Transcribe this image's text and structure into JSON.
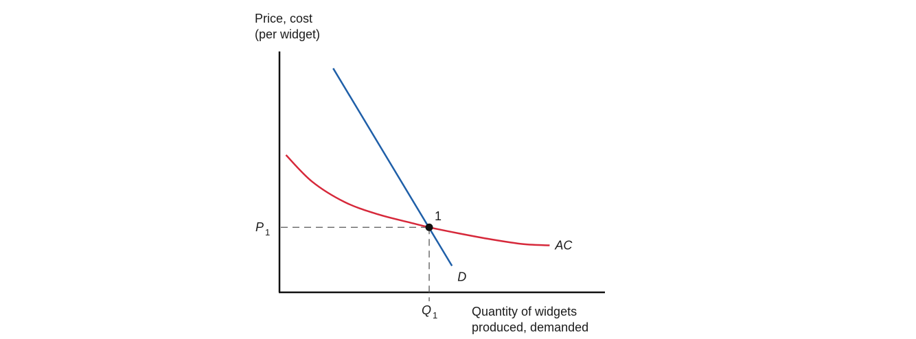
{
  "chart_data": {
    "type": "line",
    "ylabel_lines": [
      "Price, cost",
      "(per widget)"
    ],
    "xlabel_lines": [
      "Quantity of widgets",
      "produced, demanded"
    ],
    "xlim": [
      0,
      10
    ],
    "ylim": [
      0,
      10
    ],
    "series": [
      {
        "name": "D",
        "color": "#1f5fa8",
        "x": [
          1.65,
          5.3
        ],
        "y": [
          9.3,
          1.1
        ]
      },
      {
        "name": "AC",
        "color": "#d6283a",
        "x": [
          0.2,
          1.0,
          2.0,
          3.0,
          4.0,
          4.6,
          5.5,
          6.5,
          7.5,
          8.3
        ],
        "y": [
          5.7,
          4.6,
          3.75,
          3.25,
          2.9,
          2.7,
          2.45,
          2.2,
          2.0,
          1.95
        ]
      }
    ],
    "point": {
      "label": "1",
      "x": 4.6,
      "y": 2.7,
      "color": "#111111"
    },
    "tick_labels": {
      "x": {
        "main": "Q",
        "sub": "1"
      },
      "y": {
        "main": "P",
        "sub": "1"
      }
    },
    "grid": false,
    "legend": "none"
  }
}
